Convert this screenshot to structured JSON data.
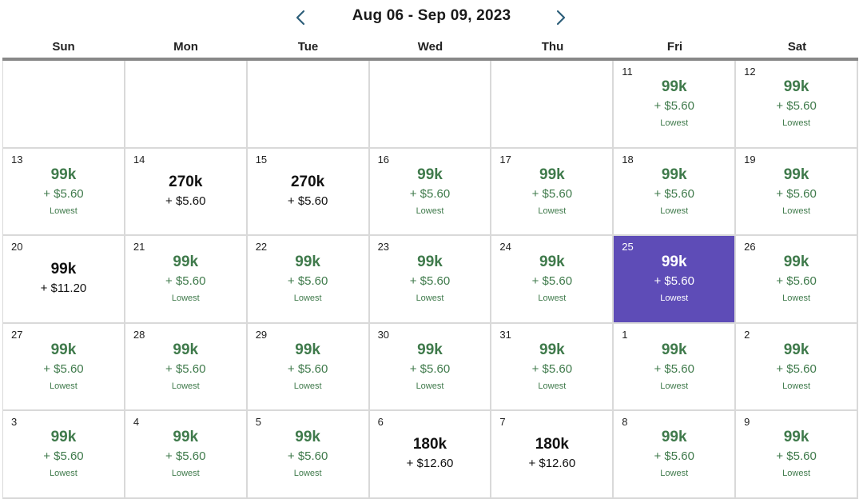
{
  "header": {
    "range_label": "Aug 06 - Sep 09, 2023",
    "prev_icon": "chevron-left-icon",
    "next_icon": "chevron-right-icon",
    "accent_color": "#2d5f7a"
  },
  "weekdays": [
    "Sun",
    "Mon",
    "Tue",
    "Wed",
    "Thu",
    "Fri",
    "Sat"
  ],
  "colors": {
    "lowest_text": "#3f7a4b",
    "selected_bg": "#5e4cb7",
    "grid_line": "#d9d9d9",
    "header_rule": "#888888"
  },
  "selected_day": "25",
  "weeks": [
    [
      null,
      null,
      null,
      null,
      null,
      {
        "day": "11",
        "points": "99k",
        "fee": "+ $5.60",
        "tag": "Lowest"
      },
      {
        "day": "12",
        "points": "99k",
        "fee": "+ $5.60",
        "tag": "Lowest"
      }
    ],
    [
      {
        "day": "13",
        "points": "99k",
        "fee": "+ $5.60",
        "tag": "Lowest"
      },
      {
        "day": "14",
        "points": "270k",
        "fee": "+ $5.60",
        "tag": ""
      },
      {
        "day": "15",
        "points": "270k",
        "fee": "+ $5.60",
        "tag": ""
      },
      {
        "day": "16",
        "points": "99k",
        "fee": "+ $5.60",
        "tag": "Lowest"
      },
      {
        "day": "17",
        "points": "99k",
        "fee": "+ $5.60",
        "tag": "Lowest"
      },
      {
        "day": "18",
        "points": "99k",
        "fee": "+ $5.60",
        "tag": "Lowest"
      },
      {
        "day": "19",
        "points": "99k",
        "fee": "+ $5.60",
        "tag": "Lowest"
      }
    ],
    [
      {
        "day": "20",
        "points": "99k",
        "fee": "+ $11.20",
        "tag": ""
      },
      {
        "day": "21",
        "points": "99k",
        "fee": "+ $5.60",
        "tag": "Lowest"
      },
      {
        "day": "22",
        "points": "99k",
        "fee": "+ $5.60",
        "tag": "Lowest"
      },
      {
        "day": "23",
        "points": "99k",
        "fee": "+ $5.60",
        "tag": "Lowest"
      },
      {
        "day": "24",
        "points": "99k",
        "fee": "+ $5.60",
        "tag": "Lowest"
      },
      {
        "day": "25",
        "points": "99k",
        "fee": "+ $5.60",
        "tag": "Lowest",
        "selected": true
      },
      {
        "day": "26",
        "points": "99k",
        "fee": "+ $5.60",
        "tag": "Lowest"
      }
    ],
    [
      {
        "day": "27",
        "points": "99k",
        "fee": "+ $5.60",
        "tag": "Lowest"
      },
      {
        "day": "28",
        "points": "99k",
        "fee": "+ $5.60",
        "tag": "Lowest"
      },
      {
        "day": "29",
        "points": "99k",
        "fee": "+ $5.60",
        "tag": "Lowest"
      },
      {
        "day": "30",
        "points": "99k",
        "fee": "+ $5.60",
        "tag": "Lowest"
      },
      {
        "day": "31",
        "points": "99k",
        "fee": "+ $5.60",
        "tag": "Lowest"
      },
      {
        "day": "1",
        "points": "99k",
        "fee": "+ $5.60",
        "tag": "Lowest"
      },
      {
        "day": "2",
        "points": "99k",
        "fee": "+ $5.60",
        "tag": "Lowest"
      }
    ],
    [
      {
        "day": "3",
        "points": "99k",
        "fee": "+ $5.60",
        "tag": "Lowest"
      },
      {
        "day": "4",
        "points": "99k",
        "fee": "+ $5.60",
        "tag": "Lowest"
      },
      {
        "day": "5",
        "points": "99k",
        "fee": "+ $5.60",
        "tag": "Lowest"
      },
      {
        "day": "6",
        "points": "180k",
        "fee": "+ $12.60",
        "tag": ""
      },
      {
        "day": "7",
        "points": "180k",
        "fee": "+ $12.60",
        "tag": ""
      },
      {
        "day": "8",
        "points": "99k",
        "fee": "+ $5.60",
        "tag": "Lowest"
      },
      {
        "day": "9",
        "points": "99k",
        "fee": "+ $5.60",
        "tag": "Lowest"
      }
    ]
  ]
}
